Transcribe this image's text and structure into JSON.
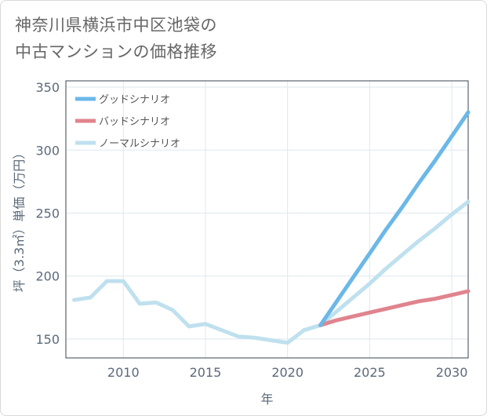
{
  "title": {
    "line1": "神奈川県横浜市中区池袋の",
    "line2": "中古マンションの価格推移"
  },
  "chart_data": {
    "type": "line",
    "xlabel": "年",
    "ylabel": "坪（3.3㎡）単価（万円）",
    "xlim": [
      2006.5,
      2031
    ],
    "ylim": [
      135,
      355
    ],
    "xticks": [
      2010,
      2015,
      2020,
      2025,
      2030
    ],
    "yticks": [
      150,
      200,
      250,
      300,
      350
    ],
    "grid": true,
    "legend_position": "top-left",
    "series": [
      {
        "name": "グッドシナリオ",
        "color": "#6bb8e8",
        "x": [
          2022,
          2023,
          2024,
          2025,
          2026,
          2027,
          2028,
          2029,
          2030,
          2031
        ],
        "values": [
          161,
          180,
          199,
          218,
          237,
          255,
          274,
          292,
          311,
          330
        ]
      },
      {
        "name": "バッドシナリオ",
        "color": "#e0848e",
        "x": [
          2022,
          2023,
          2024,
          2025,
          2026,
          2027,
          2028,
          2029,
          2030,
          2031
        ],
        "values": [
          161,
          165,
          168,
          171,
          174,
          177,
          180,
          182,
          185,
          188
        ]
      },
      {
        "name": "ノーマルシナリオ",
        "color": "#bfe0ee",
        "x": [
          2007,
          2008,
          2009,
          2010,
          2011,
          2012,
          2013,
          2014,
          2015,
          2016,
          2017,
          2018,
          2019,
          2020,
          2021,
          2022,
          2023,
          2024,
          2025,
          2026,
          2027,
          2028,
          2029,
          2030,
          2031
        ],
        "values": [
          181,
          183,
          196,
          196,
          178,
          179,
          173,
          160,
          162,
          157,
          152,
          151,
          149,
          147,
          157,
          161,
          172,
          183,
          194,
          206,
          217,
          228,
          238,
          249,
          259
        ]
      }
    ]
  }
}
